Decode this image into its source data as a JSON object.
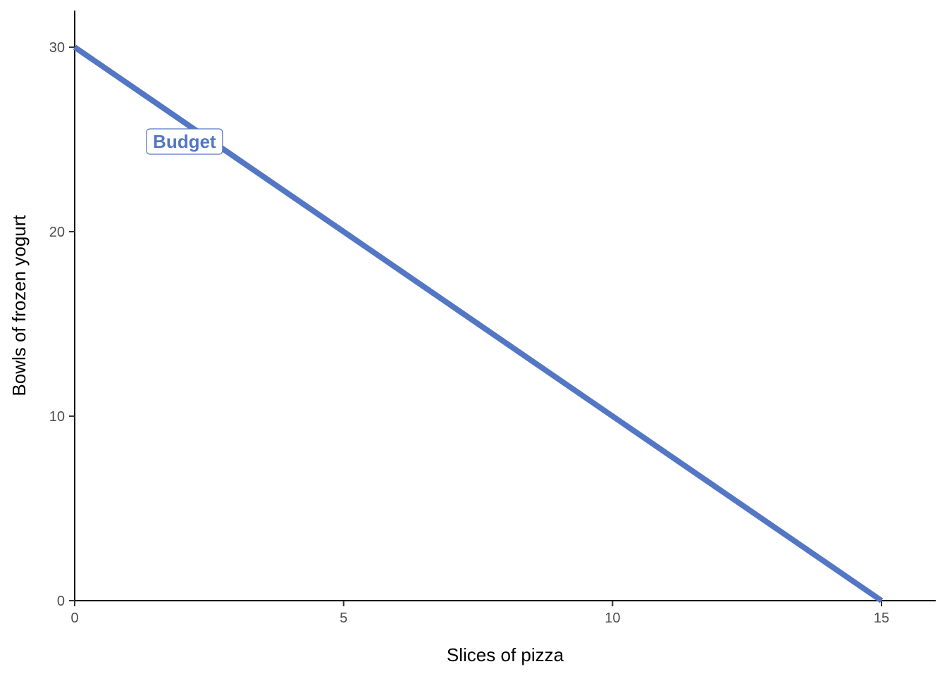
{
  "chart_data": {
    "type": "line",
    "title": "",
    "xlabel": "Slices of pizza",
    "ylabel": "Bowls of frozen yogurt",
    "xlim": [
      0,
      16
    ],
    "ylim": [
      0,
      32
    ],
    "x_ticks": [
      0,
      5,
      10,
      15
    ],
    "x_tick_labels": [
      "0",
      "5",
      "10",
      "15"
    ],
    "y_ticks": [
      0,
      10,
      20,
      30
    ],
    "y_tick_labels": [
      "0",
      "10",
      "20",
      "30"
    ],
    "grid": false,
    "series": [
      {
        "name": "Budget",
        "x": [
          0,
          15
        ],
        "y": [
          30,
          0
        ],
        "color": "#5377c4"
      }
    ],
    "annotations": [
      {
        "text": "Budget",
        "x": 2.5,
        "y": 25,
        "color": "#5377c4"
      }
    ]
  }
}
